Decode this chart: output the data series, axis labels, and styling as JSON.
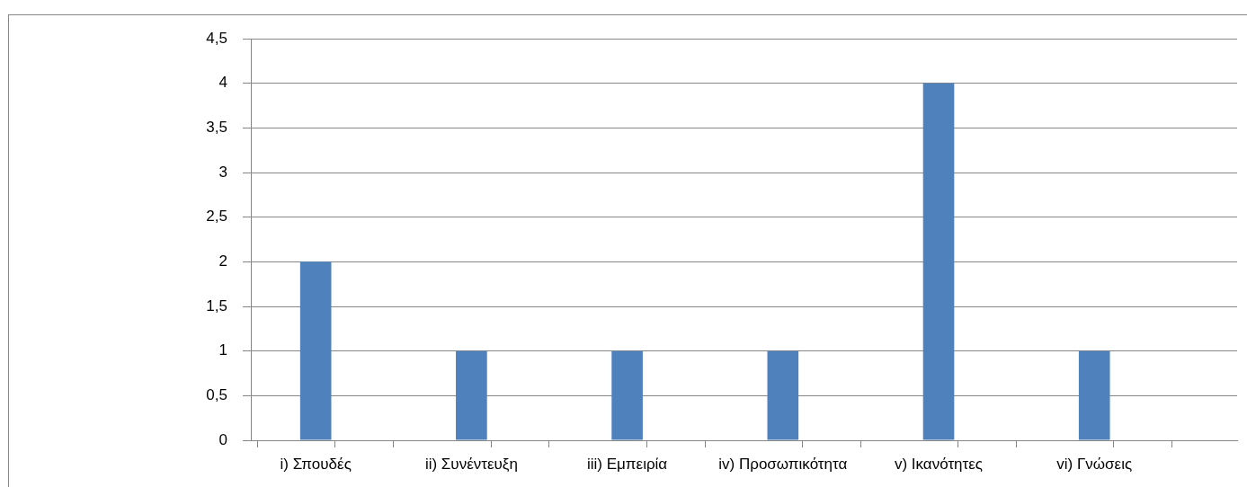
{
  "chart_data": {
    "type": "bar",
    "categories": [
      "i) Σπουδές",
      "ii) Συνέντευξη",
      "iii) Εμπειρία",
      "iv) Προσωπικότητα",
      "v) Ικανότητες",
      "vi) Γνώσεις"
    ],
    "values": [
      2,
      1,
      1,
      1,
      4,
      1
    ],
    "color": "#4f81bd",
    "ylim": [
      0,
      4.5
    ],
    "yticks": [
      0,
      {
        "value": 0.5,
        "label": "0,5"
      },
      1,
      {
        "value": 1.5,
        "label": "1,5"
      },
      2,
      {
        "value": 2.5,
        "label": "2,5"
      },
      3,
      {
        "value": 3.5,
        "label": "3,5"
      },
      4,
      {
        "value": 4.5,
        "label": "4,5"
      }
    ],
    "grid": "y"
  }
}
